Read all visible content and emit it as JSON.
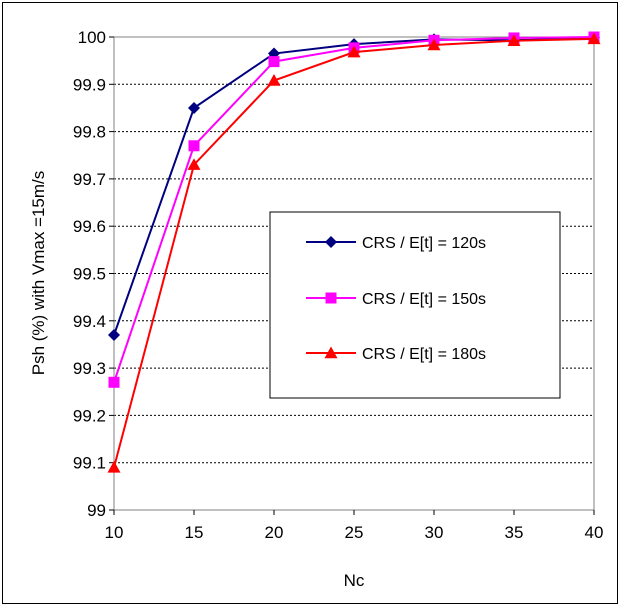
{
  "chart_data": {
    "type": "line",
    "title": "",
    "xlabel": "Nc",
    "ylabel": "Psh (%) with Vmax =15m/s",
    "x": [
      10,
      15,
      20,
      25,
      30,
      35,
      40
    ],
    "xticks": [
      "10",
      "15",
      "20",
      "25",
      "30",
      "35",
      "40"
    ],
    "yticks": [
      "99",
      "99.1",
      "99.2",
      "99.3",
      "99.4",
      "99.5",
      "99.6",
      "99.7",
      "99.8",
      "99.9",
      "100"
    ],
    "xlim": [
      10,
      40
    ],
    "ylim": [
      99,
      100
    ],
    "grid": "horizontal dashed",
    "legend_position": "center-right",
    "series": [
      {
        "name": "CRS / E[t] = 120s",
        "color": "#000080",
        "marker": "diamond",
        "values": [
          99.37,
          99.85,
          99.965,
          99.985,
          99.995,
          99.993,
          99.999
        ]
      },
      {
        "name": "CRS / E[t] = 150s",
        "color": "#ff00ff",
        "marker": "square",
        "values": [
          99.27,
          99.77,
          99.948,
          99.977,
          99.993,
          99.998,
          100.0
        ]
      },
      {
        "name": "CRS / E[t] = 180s",
        "color": "#ff0000",
        "marker": "triangle",
        "values": [
          99.09,
          99.73,
          99.908,
          99.968,
          99.983,
          99.992,
          99.996
        ]
      }
    ]
  }
}
